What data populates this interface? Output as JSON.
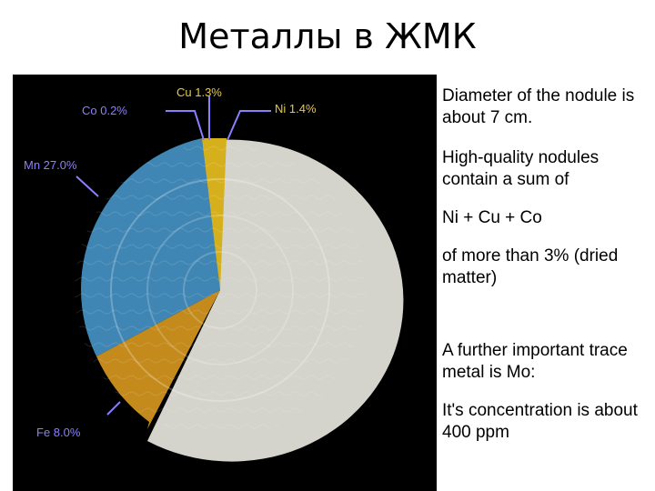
{
  "slide": {
    "title": "Металлы в ЖМК"
  },
  "figure": {
    "labels": {
      "cu": "Cu 1.3%",
      "co": "Co 0.2%",
      "ni": "Ni 1.4%",
      "mn": "Mn 27.0%",
      "fe": "Fe 8.0%"
    },
    "composition_percent": {
      "Mn": 27.0,
      "Fe": 8.0,
      "Cu": 1.3,
      "Ni": 1.4,
      "Co": 0.2
    },
    "colors": {
      "mn": "#3f86b4",
      "fe": "#c48a1c",
      "cu_ni": "#d6b01c",
      "rest": "#d4d4cc",
      "label_blue": "#8a7fff",
      "label_yellow": "#e8c84a"
    }
  },
  "text": {
    "p1": "Diameter of the nodule is about 7 cm.",
    "p2": "High-quality nodules contain a sum of",
    "p3": "Ni + Cu + Co",
    "p4": "of more than 3% (dried matter)",
    "p5": "A further important trace metal is Mo:",
    "p6": "It's concentration is about 400 ppm"
  }
}
